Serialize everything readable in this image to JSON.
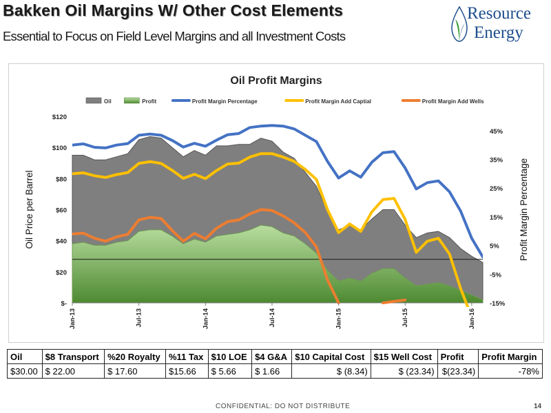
{
  "header": {
    "title": "Bakken Oil Margins W/ Other Cost Elements",
    "subtitle": "Essential to Focus on Field Level Margins and all Investment Costs"
  },
  "logo": {
    "line1": "Resource",
    "line2": "Energy",
    "color": "#1e4d8c",
    "leaf_color": "#3f9c3c"
  },
  "chart_data": {
    "type": "area",
    "title": "Oil Profit Margins",
    "ylabel": "Oil Price per Barrel",
    "y2label": "Profit Margin Percentage",
    "ylim": [
      0,
      120
    ],
    "y2lim": [
      -15,
      50
    ],
    "y_ticks": [
      {
        "value": 0,
        "label": "$-"
      },
      {
        "value": 20,
        "label": "$20"
      },
      {
        "value": 40,
        "label": "$40"
      },
      {
        "value": 60,
        "label": "$60"
      },
      {
        "value": 80,
        "label": "$80"
      },
      {
        "value": 100,
        "label": "$100"
      },
      {
        "value": 120,
        "label": "$120"
      }
    ],
    "y2_ticks": [
      {
        "value": -15,
        "label": "-15%"
      },
      {
        "value": -5,
        "label": "-5%"
      },
      {
        "value": 5,
        "label": "5%"
      },
      {
        "value": 15,
        "label": "15%"
      },
      {
        "value": 25,
        "label": "25%"
      },
      {
        "value": 35,
        "label": "35%"
      },
      {
        "value": 45,
        "label": "45%"
      }
    ],
    "x_ticks": [
      {
        "index": 0,
        "label": "Jan-13"
      },
      {
        "index": 6,
        "label": "Jul-13"
      },
      {
        "index": 12,
        "label": "Jan-14"
      },
      {
        "index": 18,
        "label": "Jul-14"
      },
      {
        "index": 24,
        "label": "Jan-15"
      },
      {
        "index": 30,
        "label": "Jul-15"
      },
      {
        "index": 36,
        "label": "Jan-16"
      }
    ],
    "reference_line": 28,
    "legend_position": "top",
    "series": [
      {
        "name": "Oil",
        "type": "area",
        "axis": "left",
        "color": "#7f7f7f",
        "values": [
          95,
          95,
          92,
          92,
          94,
          96,
          105,
          107,
          106,
          100,
          94,
          98,
          95,
          101,
          101,
          102,
          102,
          106,
          104,
          97,
          93,
          84,
          75,
          59,
          47,
          50,
          47,
          54,
          60,
          60,
          50,
          42,
          45,
          46,
          42,
          35,
          30,
          26
        ]
      },
      {
        "name": "Profit",
        "type": "area",
        "axis": "left",
        "color": "#a9d18e",
        "values": [
          38,
          39,
          37,
          37,
          39,
          40,
          46,
          47,
          47,
          43,
          38,
          41,
          39,
          43,
          44,
          45,
          47,
          50,
          49,
          45,
          43,
          38,
          32,
          21,
          14,
          16,
          14,
          19,
          22,
          22,
          16,
          11,
          12,
          13,
          11,
          8,
          5,
          2
        ]
      },
      {
        "name": "Profit Margin Percentage",
        "type": "line",
        "axis": "right",
        "color": "#4472c4",
        "values": [
          40,
          40.4,
          39.2,
          39,
          40,
          40.5,
          43.4,
          43.8,
          43.4,
          41.6,
          39.3,
          40.6,
          39.6,
          41.7,
          43.6,
          44,
          46.1,
          46.6,
          46.8,
          46.6,
          45.6,
          43.4,
          41.2,
          34.3,
          28.5,
          31,
          28.8,
          34,
          37.3,
          37.7,
          32,
          24.7,
          26.9,
          27.5,
          23.7,
          17,
          7.5,
          1
        ]
      },
      {
        "name": "Profit Margin Add Captial",
        "type": "line",
        "axis": "right",
        "color": "#ffc000",
        "values": [
          30,
          30.3,
          29.3,
          28.7,
          29.7,
          30.4,
          33.6,
          34.2,
          33.6,
          31.2,
          28.4,
          29.8,
          28.3,
          31.1,
          33.4,
          33.7,
          35.8,
          37,
          37,
          35.8,
          34.3,
          31.5,
          28,
          17.5,
          9.5,
          12.5,
          9.9,
          16.7,
          21,
          21.4,
          14.1,
          2.6,
          6.5,
          7.5,
          2,
          -10,
          -20,
          -20
        ]
      },
      {
        "name": "Profit Margin Add Wells",
        "type": "line",
        "axis": "right",
        "color": "#ed7d31",
        "values": [
          9,
          9.3,
          7.5,
          6.5,
          8,
          8.9,
          13.9,
          14.8,
          14.4,
          10.2,
          6.5,
          9.2,
          7.3,
          11,
          13.3,
          13.9,
          16,
          17.5,
          17.2,
          15.3,
          12.9,
          9.5,
          4.5,
          -7,
          -15,
          null,
          null,
          null,
          null,
          null,
          null,
          null,
          null,
          null,
          null,
          null,
          null,
          null
        ]
      },
      {
        "name": "Profit Margin Add Wells",
        "type": "line",
        "axis": "right",
        "color": "#ed7d31",
        "legend": false,
        "values": [
          null,
          null,
          null,
          null,
          null,
          null,
          null,
          null,
          null,
          null,
          null,
          null,
          null,
          null,
          null,
          null,
          null,
          null,
          null,
          null,
          null,
          null,
          null,
          null,
          null,
          null,
          null,
          null,
          -15,
          -14.5,
          -14,
          null,
          null,
          null,
          null,
          null,
          null,
          null
        ]
      }
    ]
  },
  "table": {
    "headers": [
      "Oil",
      "$8 Transport",
      "%20 Royalty",
      "%11 Tax",
      "$10 LOE",
      "$4 G&A",
      "$10 Capital Cost",
      "$15 Well Cost",
      "Profit",
      "Profit Margin"
    ],
    "row": [
      "$30.00",
      "$        22.00",
      "$       17.60",
      "$15.66",
      "$  5.66",
      "$ 1.66",
      "$                (8.34)",
      "$              (23.34)",
      "$(23.34)",
      "-78%"
    ]
  },
  "footer": {
    "confidential": "CONFIDENTIAL:  DO NOT DISTRIBUTE",
    "page": "14"
  }
}
